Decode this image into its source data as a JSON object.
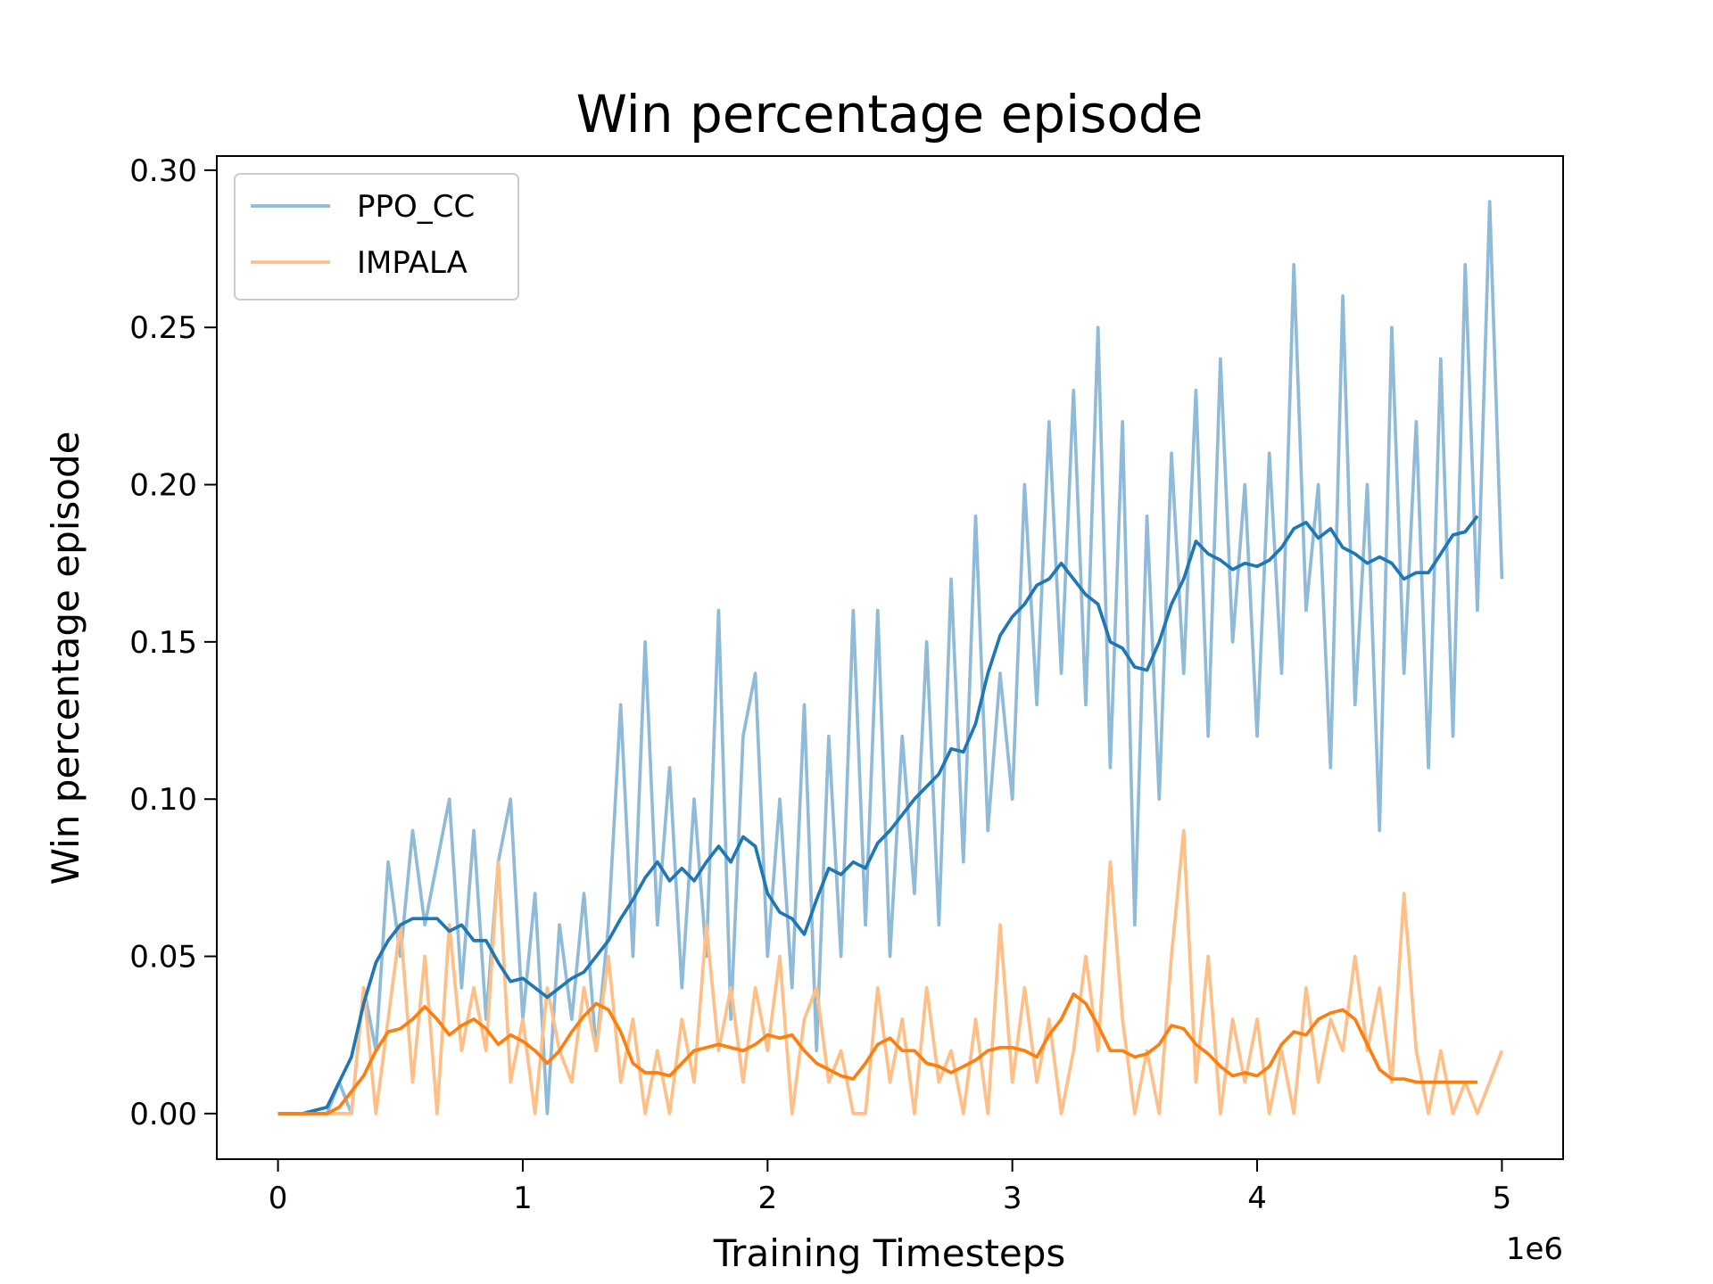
{
  "chart_data": {
    "type": "line",
    "title": "Win percentage episode",
    "x_label": "Training Timesteps",
    "y_label": "Win percentage episode",
    "x_offset_label": "1e6",
    "x": [
      0,
      0.05,
      0.1,
      0.15,
      0.2,
      0.25,
      0.3,
      0.35,
      0.4,
      0.45,
      0.5,
      0.55,
      0.6,
      0.65,
      0.7,
      0.75,
      0.8,
      0.85,
      0.9,
      0.95,
      1,
      1.05,
      1.1,
      1.15,
      1.2,
      1.25,
      1.3,
      1.35,
      1.4,
      1.45,
      1.5,
      1.55,
      1.6,
      1.65,
      1.7,
      1.75,
      1.8,
      1.85,
      1.9,
      1.95,
      2,
      2.05,
      2.1,
      2.15,
      2.2,
      2.25,
      2.3,
      2.35,
      2.4,
      2.45,
      2.5,
      2.55,
      2.6,
      2.65,
      2.7,
      2.75,
      2.8,
      2.85,
      2.9,
      2.95,
      3,
      3.05,
      3.1,
      3.15,
      3.2,
      3.25,
      3.3,
      3.35,
      3.4,
      3.45,
      3.5,
      3.55,
      3.6,
      3.65,
      3.7,
      3.75,
      3.8,
      3.85,
      3.9,
      3.95,
      4,
      4.05,
      4.1,
      4.15,
      4.2,
      4.25,
      4.3,
      4.35,
      4.4,
      4.45,
      4.5,
      4.55,
      4.6,
      4.65,
      4.7,
      4.75,
      4.8,
      4.85,
      4.9,
      4.95,
      5
    ],
    "series": [
      {
        "name": "PPO_CC",
        "color": "#8fbbd9",
        "values": [
          0,
          0,
          0,
          0,
          0,
          0.01,
          0,
          0.04,
          0.02,
          0.08,
          0.05,
          0.09,
          0.06,
          0.08,
          0.1,
          0.04,
          0.09,
          0.03,
          0.08,
          0.1,
          0.03,
          0.07,
          0,
          0.06,
          0.03,
          0.07,
          0.02,
          0.06,
          0.13,
          0.05,
          0.15,
          0.06,
          0.11,
          0.04,
          0.1,
          0.05,
          0.16,
          0.03,
          0.12,
          0.14,
          0.05,
          0.1,
          0.04,
          0.13,
          0.02,
          0.12,
          0.05,
          0.16,
          0.06,
          0.16,
          0.05,
          0.12,
          0.07,
          0.15,
          0.06,
          0.17,
          0.08,
          0.19,
          0.09,
          0.14,
          0.1,
          0.2,
          0.13,
          0.22,
          0.14,
          0.23,
          0.13,
          0.25,
          0.11,
          0.22,
          0.06,
          0.19,
          0.1,
          0.21,
          0.14,
          0.23,
          0.12,
          0.24,
          0.15,
          0.2,
          0.12,
          0.21,
          0.14,
          0.27,
          0.16,
          0.2,
          0.11,
          0.26,
          0.13,
          0.2,
          0.09,
          0.25,
          0.14,
          0.22,
          0.11,
          0.24,
          0.12,
          0.27,
          0.16,
          0.29,
          0.17
        ]
      },
      {
        "name": "IMPALA",
        "color": "#ffbf86",
        "values": [
          0,
          0,
          0,
          0,
          0,
          0,
          0,
          0.04,
          0,
          0.03,
          0.06,
          0.01,
          0.05,
          0,
          0.06,
          0.02,
          0.04,
          0.02,
          0.08,
          0.01,
          0.03,
          0,
          0.04,
          0.02,
          0.01,
          0.04,
          0.02,
          0.05,
          0.01,
          0.03,
          0,
          0.02,
          0,
          0.03,
          0.01,
          0.06,
          0.02,
          0.04,
          0.01,
          0.04,
          0.02,
          0.05,
          0,
          0.03,
          0.04,
          0.01,
          0.02,
          0,
          0,
          0.04,
          0.01,
          0.03,
          0,
          0.04,
          0.01,
          0.02,
          0,
          0.03,
          0,
          0.06,
          0.01,
          0.04,
          0.01,
          0.03,
          0,
          0.02,
          0.05,
          0.02,
          0.08,
          0.03,
          0,
          0.02,
          0,
          0.05,
          0.09,
          0.01,
          0.05,
          0,
          0.03,
          0.01,
          0.03,
          0,
          0.02,
          0,
          0.04,
          0.01,
          0.03,
          0.02,
          0.05,
          0.02,
          0.04,
          0.01,
          0.07,
          0.02,
          0,
          0.02,
          0,
          0.01,
          0,
          0.01,
          0.02
        ]
      },
      {
        "color": "#1f77b4",
        "values": [
          0,
          0,
          0,
          0.001,
          0.002,
          0.01,
          0.018,
          0.035,
          0.048,
          0.055,
          0.06,
          0.062,
          0.062,
          0.062,
          0.058,
          0.06,
          0.055,
          0.055,
          0.048,
          0.042,
          0.043,
          0.04,
          0.037,
          0.04,
          0.043,
          0.045,
          0.05,
          0.055,
          0.062,
          0.068,
          0.075,
          0.08,
          0.074,
          0.078,
          0.074,
          0.08,
          0.085,
          0.08,
          0.088,
          0.085,
          0.07,
          0.064,
          0.062,
          0.057,
          0.068,
          0.078,
          0.076,
          0.08,
          0.078,
          0.086,
          0.09,
          0.095,
          0.1,
          0.104,
          0.108,
          0.116,
          0.115,
          0.124,
          0.14,
          0.152,
          0.158,
          0.162,
          0.168,
          0.17,
          0.175,
          0.17,
          0.165,
          0.162,
          0.15,
          0.148,
          0.142,
          0.141,
          0.15,
          0.162,
          0.17,
          0.182,
          0.178,
          0.176,
          0.173,
          0.175,
          0.174,
          0.176,
          0.18,
          0.186,
          0.188,
          0.183,
          0.186,
          0.18,
          0.178,
          0.175,
          0.177,
          0.175,
          0.17,
          0.172,
          0.172,
          0.178,
          0.184,
          0.185,
          0.19,
          null,
          null
        ]
      },
      {
        "color": "#ff7f0e",
        "values": [
          0,
          0,
          0,
          0,
          0,
          0.002,
          0.007,
          0.012,
          0.02,
          0.026,
          0.027,
          0.03,
          0.034,
          0.03,
          0.025,
          0.028,
          0.03,
          0.027,
          0.022,
          0.025,
          0.023,
          0.02,
          0.016,
          0.02,
          0.026,
          0.031,
          0.035,
          0.033,
          0.026,
          0.016,
          0.013,
          0.013,
          0.012,
          0.016,
          0.02,
          0.021,
          0.022,
          0.021,
          0.02,
          0.022,
          0.025,
          0.024,
          0.025,
          0.02,
          0.016,
          0.014,
          0.012,
          0.011,
          0.016,
          0.022,
          0.024,
          0.02,
          0.02,
          0.016,
          0.015,
          0.013,
          0.015,
          0.017,
          0.02,
          0.021,
          0.021,
          0.02,
          0.018,
          0.025,
          0.03,
          0.038,
          0.035,
          0.028,
          0.02,
          0.02,
          0.018,
          0.019,
          0.022,
          0.028,
          0.027,
          0.022,
          0.019,
          0.015,
          0.012,
          0.013,
          0.012,
          0.015,
          0.022,
          0.026,
          0.025,
          0.03,
          0.032,
          0.033,
          0.03,
          0.022,
          0.014,
          0.011,
          0.011,
          0.01,
          0.01,
          0.01,
          0.01,
          0.01,
          0.01,
          null,
          null
        ]
      }
    ],
    "xlim": [
      -0.25,
      5.25
    ],
    "xticks": [
      0,
      1,
      2,
      3,
      4,
      5
    ],
    "ylim": [
      -0.0145,
      0.3045
    ],
    "yticks": [
      {
        "value": 0,
        "label": "0.00"
      },
      {
        "value": 0.05,
        "label": "0.05"
      },
      {
        "value": 0.1,
        "label": "0.10"
      },
      {
        "value": 0.15,
        "label": "0.15"
      },
      {
        "value": 0.2,
        "label": "0.20"
      },
      {
        "value": 0.25,
        "label": "0.25"
      },
      {
        "value": 0.3,
        "label": "0.30"
      }
    ],
    "grid": false,
    "legend": "upper left"
  }
}
